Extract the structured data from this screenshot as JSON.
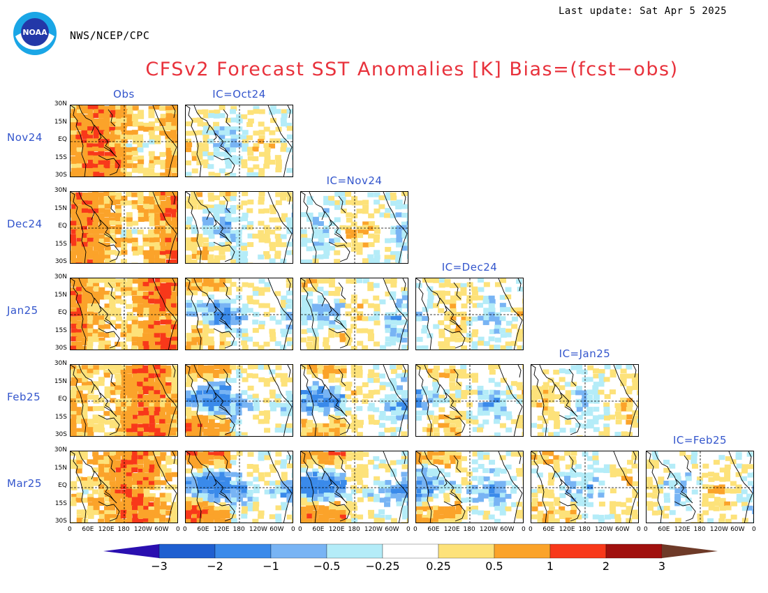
{
  "header": {
    "agency": "NWS/NCEP/CPC",
    "last_update": "Last update: Sat Apr  5 2025",
    "title": "CFSv2 Forecast SST Anomalies [K] Bias=(fcst−obs)",
    "logo_text": "NOAA"
  },
  "columns": [
    "Obs",
    "IC=Oct24",
    "IC=Nov24",
    "IC=Dec24",
    "IC=Jan25",
    "IC=Feb25"
  ],
  "rows": [
    "Nov24",
    "Dec24",
    "Jan25",
    "Feb25",
    "Mar25"
  ],
  "lat_ticks": [
    "30N",
    "15N",
    "EQ",
    "15S",
    "30S"
  ],
  "lon_ticks": [
    "0",
    "60E",
    "120E",
    "180",
    "120W",
    "60W",
    "0"
  ],
  "colorbar": {
    "labels": [
      "−3",
      "−2",
      "−1",
      "−0.5",
      "−0.25",
      "0.25",
      "0.5",
      "1",
      "2",
      "3"
    ],
    "colors": [
      "#2a0fb0",
      "#1f5fd0",
      "#3a8aea",
      "#78b4f4",
      "#b4ecf8",
      "#ffffff",
      "#fde27a",
      "#fba32a",
      "#f8381a",
      "#a0100e",
      "#6e3a28"
    ]
  },
  "panel_colors": {
    "neg_strong": "#3a8aea",
    "neg": "#78b4f4",
    "neg_weak": "#b4ecf8",
    "pos_weak": "#fde27a",
    "pos": "#fba32a",
    "pos_strong": "#f8381a"
  }
}
